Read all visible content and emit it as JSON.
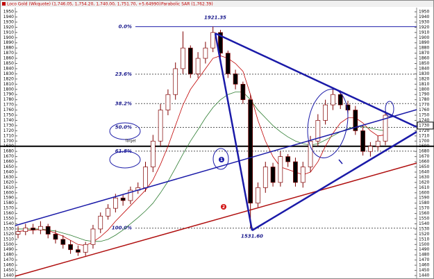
{
  "chart_data": {
    "type": "candlestick",
    "title": "Loco Gold (Wkquote) (1,746.05, 1,754.20, 1,740.00, 1,751.70, +5.64990)",
    "subtitle": "Parabolic SAR (1,762.39)",
    "open": [
      1520,
      1525,
      1532,
      1528,
      1535,
      1520,
      1510,
      1500,
      1490,
      1485,
      1500,
      1530,
      1555,
      1570,
      1590,
      1585,
      1605,
      1610,
      1650,
      1700,
      1760,
      1790,
      1840,
      1880,
      1830,
      1860,
      1880,
      1910,
      1870,
      1830,
      1810,
      1780,
      1580,
      1610,
      1650,
      1620,
      1670,
      1660,
      1620,
      1650,
      1700,
      1740,
      1770,
      1790,
      1770,
      1760,
      1720,
      1680,
      1690,
      1700
    ],
    "high": [
      1535,
      1540,
      1540,
      1545,
      1540,
      1528,
      1518,
      1508,
      1498,
      1505,
      1538,
      1562,
      1578,
      1598,
      1596,
      1612,
      1620,
      1660,
      1712,
      1772,
      1800,
      1852,
      1912,
      1885,
      1872,
      1892,
      1921.35,
      1915,
      1875,
      1838,
      1815,
      1790,
      1620,
      1660,
      1658,
      1680,
      1675,
      1668,
      1660,
      1710,
      1752,
      1780,
      1800,
      1798,
      1778,
      1768,
      1730,
      1698,
      1710,
      1758
    ],
    "low": [
      1512,
      1518,
      1520,
      1520,
      1512,
      1502,
      1492,
      1482,
      1478,
      1478,
      1492,
      1522,
      1548,
      1562,
      1575,
      1578,
      1598,
      1602,
      1640,
      1690,
      1750,
      1780,
      1830,
      1822,
      1822,
      1850,
      1872,
      1862,
      1822,
      1800,
      1772,
      1531.6,
      1572,
      1600,
      1612,
      1612,
      1650,
      1612,
      1610,
      1640,
      1690,
      1732,
      1760,
      1762,
      1752,
      1712,
      1672,
      1670,
      1682,
      1692
    ],
    "close": [
      1525,
      1532,
      1528,
      1535,
      1520,
      1510,
      1500,
      1490,
      1485,
      1500,
      1530,
      1555,
      1570,
      1590,
      1585,
      1605,
      1610,
      1650,
      1700,
      1760,
      1790,
      1840,
      1880,
      1830,
      1860,
      1880,
      1910,
      1870,
      1830,
      1810,
      1780,
      1580,
      1610,
      1650,
      1620,
      1670,
      1660,
      1620,
      1650,
      1700,
      1740,
      1770,
      1790,
      1770,
      1760,
      1720,
      1680,
      1690,
      1700,
      1750
    ],
    "up_color": "#ffffff",
    "down_color": "#000000",
    "candle_edge": "#800000",
    "series": [
      {
        "color": "#c00000",
        "values": [
          1525,
          1527,
          1528,
          1529,
          1527,
          1522,
          1516,
          1508,
          1500,
          1498,
          1505,
          1515,
          1528,
          1545,
          1560,
          1575,
          1590,
          1605,
          1625,
          1655,
          1690,
          1730,
          1770,
          1800,
          1820,
          1840,
          1860,
          1865,
          1860,
          1850,
          1835,
          1790,
          1740,
          1700,
          1670,
          1650,
          1645,
          1640,
          1635,
          1640,
          1660,
          1690,
          1715,
          1735,
          1745,
          1745,
          1735,
          1720,
          1710,
          1712
        ]
      },
      {
        "color": "#2e7d32",
        "values": [
          1530,
          1530,
          1530,
          1530,
          1528,
          1526,
          1522,
          1518,
          1513,
          1508,
          1506,
          1506,
          1510,
          1518,
          1528,
          1540,
          1552,
          1565,
          1580,
          1600,
          1622,
          1648,
          1675,
          1700,
          1722,
          1745,
          1765,
          1780,
          1790,
          1795,
          1795,
          1780,
          1760,
          1745,
          1730,
          1718,
          1708,
          1700,
          1695,
          1692,
          1695,
          1702,
          1710,
          1718,
          1724,
          1728,
          1728,
          1725,
          1722,
          1720
        ]
      }
    ],
    "ylim": [
      1440,
      1950
    ],
    "yticks": [
      1440,
      1450,
      1460,
      1470,
      1480,
      1490,
      1500,
      1510,
      1520,
      1530,
      1540,
      1550,
      1560,
      1570,
      1580,
      1590,
      1600,
      1610,
      1620,
      1630,
      1640,
      1650,
      1660,
      1670,
      1680,
      1690,
      1700,
      1710,
      1720,
      1730,
      1740,
      1750,
      1760,
      1770,
      1780,
      1790,
      1800,
      1810,
      1820,
      1830,
      1840,
      1850,
      1860,
      1870,
      1880,
      1890,
      1900,
      1910,
      1920,
      1930,
      1940,
      1950
    ],
    "fib_levels": [
      {
        "value": 1921.35,
        "label": "0.0%"
      },
      {
        "value": 1829.37,
        "label": "23.6%"
      },
      {
        "value": 1772.47,
        "label": "38.2%"
      },
      {
        "value": 1726.48,
        "label": "50.0%"
      },
      {
        "value": 1680.49,
        "label": "61.8%"
      },
      {
        "value": 1531.6,
        "label": "100.0%"
      }
    ],
    "support_line": 1690,
    "high_label": {
      "value": 1921.35,
      "label": "1921.35"
    },
    "low_label": {
      "value": 1531.6,
      "label": "1531.60"
    },
    "target_text": "Target",
    "markers": [
      "1",
      "2"
    ],
    "price_marker": {
      "value": 1730,
      "label": "1730"
    }
  }
}
